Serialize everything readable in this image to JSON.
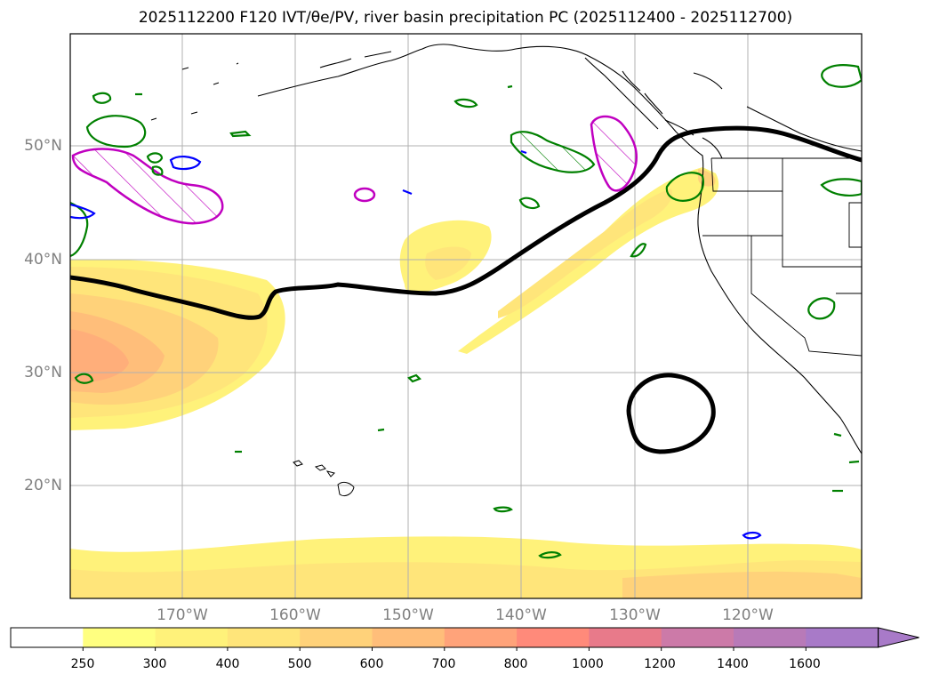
{
  "title": "2025112200 F120 IVT/θe/PV, river basin precipitation PC (2025112400 - 2025112700)",
  "map": {
    "lat_labels": [
      "50°N",
      "40°N",
      "30°N",
      "20°N"
    ],
    "lon_labels": [
      "170°W",
      "160°W",
      "150°W",
      "140°W",
      "130°W",
      "120°W"
    ],
    "grid": true
  },
  "colorbar": {
    "levels": [
      "250",
      "300",
      "400",
      "500",
      "600",
      "700",
      "800",
      "1000",
      "1200",
      "1400",
      "1600"
    ],
    "colors": [
      "#ffffff",
      "#ffff80",
      "#fff27a",
      "#ffe57a",
      "#ffd27a",
      "#ffbe7a",
      "#ffa37a",
      "#ff8a7a",
      "#e87a8a",
      "#cc7aa8",
      "#b87ab8",
      "#a87ac8"
    ],
    "extend": "max"
  },
  "colors": {
    "ivt_fill": "#fff27a",
    "theta_contour": "#000000",
    "pv_contour": "#c000c0",
    "precip_green": "#008000",
    "precip_blue": "#0000ff",
    "coastline": "#000000"
  }
}
